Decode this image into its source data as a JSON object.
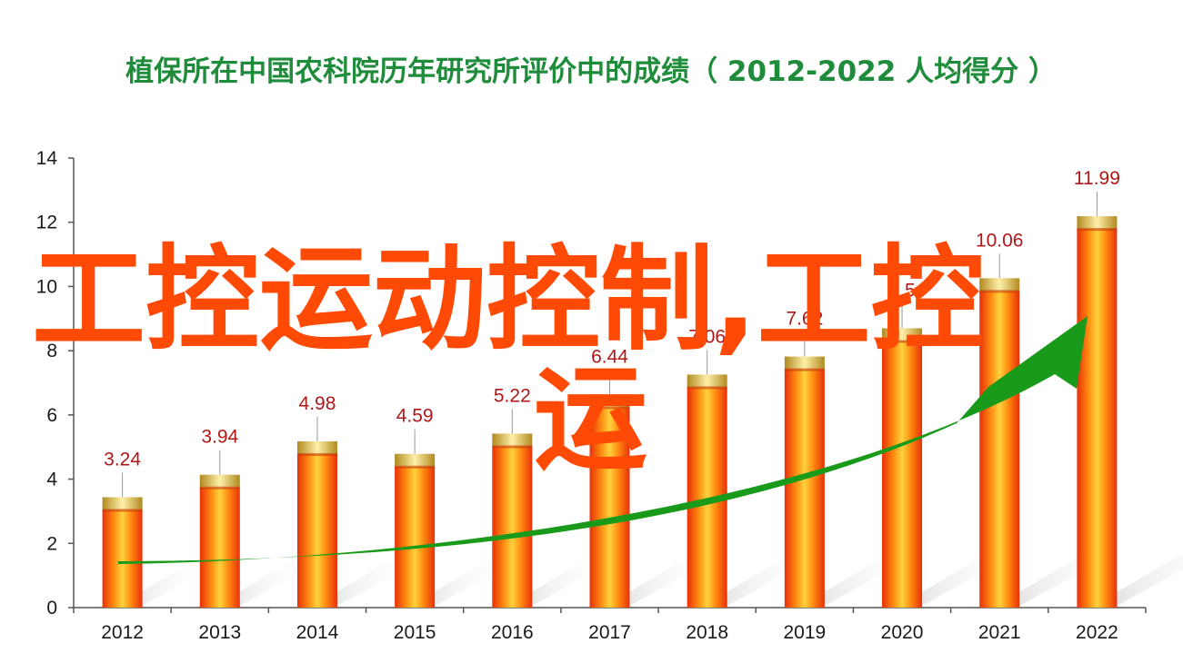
{
  "chart_data": {
    "type": "bar",
    "title": "植保所在中国农科院历年研究所评价中的成绩（ 2012-2022  人均得分 ）",
    "categories": [
      "2012",
      "2013",
      "2014",
      "2015",
      "2016",
      "2017",
      "2018",
      "2019",
      "2020",
      "2021",
      "2022"
    ],
    "values": [
      3.24,
      3.94,
      4.98,
      4.59,
      5.22,
      6.44,
      7.06,
      7.62,
      8.5,
      10.06,
      11.99
    ],
    "data_labels": [
      "3.24",
      "3.94",
      "4.98",
      "4.59",
      "5.22",
      "6.44",
      "7.06",
      "7.62",
      "8.5",
      "10.06",
      "11.99"
    ],
    "ylim": [
      0,
      14
    ],
    "yticks": [
      "0",
      "2",
      "4",
      "6",
      "8",
      "10",
      "12",
      "14"
    ],
    "xlabel": "",
    "ylabel": "",
    "grid": false,
    "legend": "none",
    "colors": {
      "bar_light": "#ffd23c",
      "bar_mid": "#ff8a10",
      "bar_dark": "#e8300a",
      "cap_light": "#fff0a8",
      "cap_dark": "#b08a20",
      "data_label": "#b01818",
      "arrow": "#1a9a1a",
      "title": "#1e8c3a",
      "overlay": "#ff4a05"
    }
  },
  "overlay": {
    "line1": "工控运动控制,工控",
    "line2": "运"
  }
}
